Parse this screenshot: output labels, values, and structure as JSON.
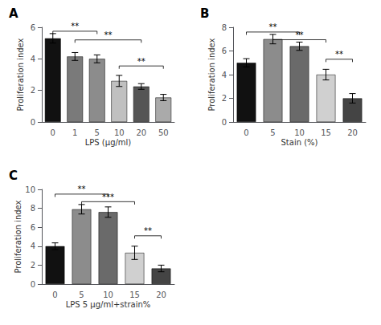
{
  "chart_data": [
    {
      "type": "bar",
      "title": "A",
      "categories": [
        "0",
        "1",
        "5",
        "10",
        "20",
        "50"
      ],
      "values": [
        5.3,
        4.15,
        4.0,
        2.6,
        2.25,
        1.55
      ],
      "errors": [
        0.3,
        0.25,
        0.25,
        0.35,
        0.18,
        0.2
      ],
      "colors": [
        "#111111",
        "#7a7a7a",
        "#8c8c8c",
        "#c0c0c0",
        "#555555",
        "#aaaaaa"
      ],
      "xlabel": "LPS (μg/ml)",
      "ylabel": "Proliferation index",
      "ylim": [
        0,
        6
      ],
      "yticks": [
        0,
        2,
        4,
        6
      ],
      "grid": false,
      "annotations": [
        {
          "text": "**",
          "x1": "0",
          "x2": "5",
          "y": 5.75
        },
        {
          "text": "**",
          "x1": "1",
          "x2": "20",
          "y": 5.2
        },
        {
          "text": "**",
          "x1": "10",
          "x2": "50",
          "y": 3.55
        }
      ]
    },
    {
      "type": "bar",
      "title": "B",
      "categories": [
        "0",
        "5",
        "10",
        "15",
        "20"
      ],
      "values": [
        5.0,
        7.0,
        6.4,
        4.0,
        2.0
      ],
      "errors": [
        0.35,
        0.4,
        0.35,
        0.45,
        0.4
      ],
      "colors": [
        "#111111",
        "#8c8c8c",
        "#6a6a6a",
        "#d0d0d0",
        "#444444"
      ],
      "xlabel": "Stain (%)",
      "ylabel": "Proliferation index",
      "ylim": [
        0,
        8
      ],
      "yticks": [
        0,
        2,
        4,
        6,
        8
      ],
      "grid": false,
      "annotations": [
        {
          "text": "**",
          "x1": "0",
          "x2": "10",
          "y": 7.6
        },
        {
          "text": "**",
          "x1": "5",
          "x2": "15",
          "y": 6.95
        },
        {
          "text": "**",
          "x1": "15",
          "x2": "20",
          "y": 5.3
        }
      ]
    },
    {
      "type": "bar",
      "title": "C",
      "categories": [
        "0",
        "5",
        "10",
        "15",
        "20"
      ],
      "values": [
        4.0,
        7.9,
        7.6,
        3.3,
        1.65
      ],
      "errors": [
        0.35,
        0.5,
        0.55,
        0.7,
        0.35
      ],
      "colors": [
        "#111111",
        "#8c8c8c",
        "#6a6a6a",
        "#d0d0d0",
        "#444444"
      ],
      "xlabel": "LPS 5 μg/ml+strain%",
      "ylabel": "Proliferation index",
      "ylim": [
        0,
        10
      ],
      "yticks": [
        0,
        2,
        4,
        6,
        8,
        10
      ],
      "grid": false,
      "annotations": [
        {
          "text": "**",
          "x1": "0",
          "x2": "10",
          "y": 9.5
        },
        {
          "text": "***",
          "x1": "5",
          "x2": "15",
          "y": 8.7
        },
        {
          "text": "**",
          "x1": "15",
          "x2": "20",
          "y": 5.1
        }
      ]
    }
  ]
}
